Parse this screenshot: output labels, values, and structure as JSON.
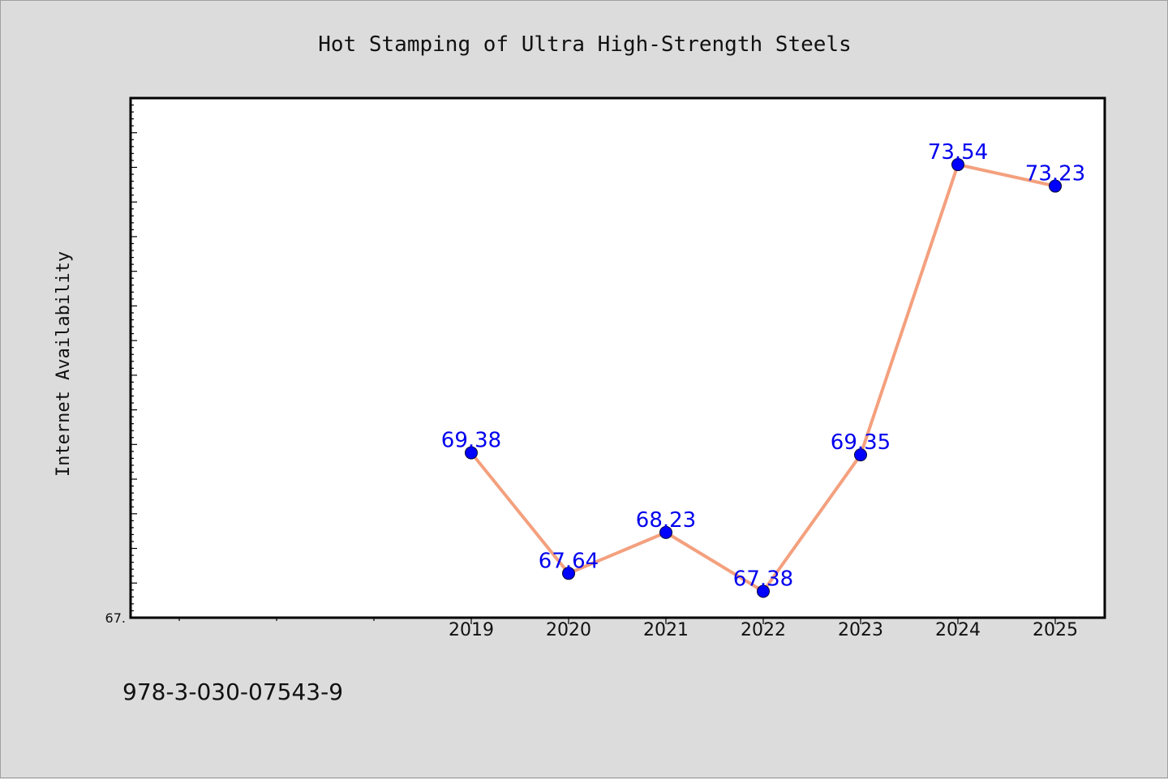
{
  "chart_data": {
    "type": "line",
    "title": "Hot Stamping of Ultra High-Strength Steels",
    "xlabel": "",
    "ylabel": "Internet Availability",
    "categories": [
      "2019",
      "2020",
      "2021",
      "2022",
      "2023",
      "2024",
      "2025"
    ],
    "series": [
      {
        "values": [
          69.38,
          67.64,
          68.23,
          67.38,
          69.35,
          73.54,
          73.23
        ],
        "labels": [
          "69.38",
          "67.64",
          "68.23",
          "67.38",
          "69.35",
          "73.54",
          "73.23"
        ],
        "line_color": "#f4a07e",
        "marker_color": "#0000ff"
      }
    ],
    "ylim": [
      67.0,
      74.5
    ],
    "y_tick_label": "67.",
    "grid": false,
    "legend": "none"
  },
  "footer": {
    "isbn": "978-3-030-07543-9"
  }
}
